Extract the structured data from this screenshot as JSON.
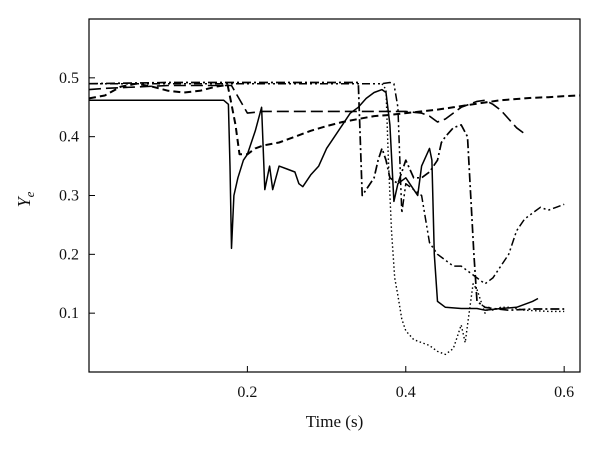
{
  "chart_data": {
    "type": "line",
    "xlabel": "Time (s)",
    "ylabel_main": "Y",
    "ylabel_sub": "e",
    "xlim": [
      0.0,
      0.62
    ],
    "ylim": [
      0.0,
      0.6
    ],
    "x_ticks": [
      0.2,
      0.4,
      0.6
    ],
    "y_ticks": [
      0.1,
      0.2,
      0.3,
      0.4,
      0.5
    ],
    "x_tick_labels": [
      "0.2",
      "0.4",
      "0.6"
    ],
    "y_tick_labels": [
      "0.1",
      "0.2",
      "0.3",
      "0.4",
      "0.5"
    ],
    "grid": false,
    "series": [
      {
        "style": "solid",
        "points": [
          [
            0.0,
            0.462
          ],
          [
            0.1,
            0.462
          ],
          [
            0.17,
            0.462
          ],
          [
            0.176,
            0.455
          ],
          [
            0.178,
            0.35
          ],
          [
            0.18,
            0.21
          ],
          [
            0.183,
            0.3
          ],
          [
            0.188,
            0.33
          ],
          [
            0.195,
            0.36
          ],
          [
            0.2,
            0.37
          ],
          [
            0.21,
            0.41
          ],
          [
            0.218,
            0.45
          ],
          [
            0.222,
            0.31
          ],
          [
            0.228,
            0.35
          ],
          [
            0.232,
            0.31
          ],
          [
            0.24,
            0.35
          ],
          [
            0.25,
            0.345
          ],
          [
            0.26,
            0.34
          ],
          [
            0.265,
            0.32
          ],
          [
            0.27,
            0.315
          ],
          [
            0.28,
            0.335
          ],
          [
            0.29,
            0.35
          ],
          [
            0.3,
            0.38
          ],
          [
            0.31,
            0.4
          ],
          [
            0.32,
            0.42
          ],
          [
            0.33,
            0.44
          ],
          [
            0.34,
            0.45
          ],
          [
            0.35,
            0.465
          ],
          [
            0.36,
            0.475
          ],
          [
            0.37,
            0.48
          ],
          [
            0.375,
            0.475
          ],
          [
            0.38,
            0.42
          ],
          [
            0.385,
            0.29
          ],
          [
            0.39,
            0.32
          ],
          [
            0.4,
            0.33
          ],
          [
            0.41,
            0.31
          ],
          [
            0.415,
            0.3
          ],
          [
            0.42,
            0.35
          ],
          [
            0.43,
            0.38
          ],
          [
            0.433,
            0.36
          ],
          [
            0.436,
            0.2
          ],
          [
            0.44,
            0.12
          ],
          [
            0.45,
            0.11
          ],
          [
            0.47,
            0.108
          ],
          [
            0.49,
            0.108
          ],
          [
            0.5,
            0.105
          ],
          [
            0.52,
            0.108
          ],
          [
            0.54,
            0.11
          ],
          [
            0.56,
            0.12
          ],
          [
            0.567,
            0.125
          ]
        ]
      },
      {
        "style": "dashed",
        "points": [
          [
            0.0,
            0.465
          ],
          [
            0.02,
            0.47
          ],
          [
            0.04,
            0.485
          ],
          [
            0.06,
            0.49
          ],
          [
            0.08,
            0.485
          ],
          [
            0.1,
            0.478
          ],
          [
            0.12,
            0.475
          ],
          [
            0.14,
            0.478
          ],
          [
            0.16,
            0.485
          ],
          [
            0.175,
            0.488
          ],
          [
            0.18,
            0.455
          ],
          [
            0.185,
            0.42
          ],
          [
            0.19,
            0.37
          ],
          [
            0.2,
            0.37
          ],
          [
            0.21,
            0.38
          ],
          [
            0.22,
            0.385
          ],
          [
            0.24,
            0.39
          ],
          [
            0.26,
            0.4
          ],
          [
            0.28,
            0.41
          ],
          [
            0.3,
            0.418
          ],
          [
            0.32,
            0.425
          ],
          [
            0.34,
            0.43
          ],
          [
            0.36,
            0.435
          ],
          [
            0.38,
            0.437
          ],
          [
            0.4,
            0.44
          ],
          [
            0.42,
            0.443
          ],
          [
            0.44,
            0.446
          ],
          [
            0.46,
            0.45
          ],
          [
            0.48,
            0.454
          ],
          [
            0.5,
            0.458
          ],
          [
            0.52,
            0.462
          ],
          [
            0.54,
            0.464
          ],
          [
            0.56,
            0.466
          ],
          [
            0.58,
            0.467
          ],
          [
            0.6,
            0.469
          ],
          [
            0.62,
            0.47
          ]
        ]
      },
      {
        "style": "longdash",
        "points": [
          [
            0.0,
            0.48
          ],
          [
            0.02,
            0.482
          ],
          [
            0.1,
            0.487
          ],
          [
            0.18,
            0.487
          ],
          [
            0.2,
            0.44
          ],
          [
            0.22,
            0.443
          ],
          [
            0.25,
            0.443
          ],
          [
            0.3,
            0.443
          ],
          [
            0.35,
            0.443
          ],
          [
            0.38,
            0.443
          ],
          [
            0.4,
            0.443
          ],
          [
            0.42,
            0.44
          ],
          [
            0.43,
            0.435
          ],
          [
            0.44,
            0.425
          ],
          [
            0.45,
            0.43
          ],
          [
            0.46,
            0.44
          ],
          [
            0.47,
            0.45
          ],
          [
            0.48,
            0.455
          ],
          [
            0.49,
            0.46
          ],
          [
            0.5,
            0.462
          ],
          [
            0.51,
            0.455
          ],
          [
            0.52,
            0.445
          ],
          [
            0.53,
            0.43
          ],
          [
            0.54,
            0.415
          ],
          [
            0.55,
            0.405
          ]
        ]
      },
      {
        "style": "dashdot",
        "points": [
          [
            0.0,
            0.49
          ],
          [
            0.1,
            0.492
          ],
          [
            0.2,
            0.492
          ],
          [
            0.3,
            0.492
          ],
          [
            0.34,
            0.492
          ],
          [
            0.345,
            0.3
          ],
          [
            0.35,
            0.31
          ],
          [
            0.36,
            0.33
          ],
          [
            0.365,
            0.36
          ],
          [
            0.37,
            0.38
          ],
          [
            0.375,
            0.36
          ],
          [
            0.38,
            0.33
          ],
          [
            0.39,
            0.32
          ],
          [
            0.4,
            0.36
          ],
          [
            0.41,
            0.33
          ],
          [
            0.42,
            0.33
          ],
          [
            0.43,
            0.34
          ],
          [
            0.44,
            0.36
          ],
          [
            0.445,
            0.39
          ],
          [
            0.45,
            0.4
          ],
          [
            0.46,
            0.415
          ],
          [
            0.47,
            0.42
          ],
          [
            0.478,
            0.4
          ],
          [
            0.482,
            0.3
          ],
          [
            0.486,
            0.2
          ],
          [
            0.49,
            0.12
          ],
          [
            0.5,
            0.11
          ],
          [
            0.51,
            0.108
          ],
          [
            0.53,
            0.105
          ],
          [
            0.56,
            0.107
          ],
          [
            0.6,
            0.107
          ]
        ]
      },
      {
        "style": "dashdotdot",
        "points": [
          [
            0.0,
            0.49
          ],
          [
            0.1,
            0.49
          ],
          [
            0.2,
            0.49
          ],
          [
            0.3,
            0.49
          ],
          [
            0.36,
            0.49
          ],
          [
            0.37,
            0.49
          ],
          [
            0.38,
            0.492
          ],
          [
            0.385,
            0.49
          ],
          [
            0.39,
            0.45
          ],
          [
            0.395,
            0.27
          ],
          [
            0.4,
            0.32
          ],
          [
            0.41,
            0.31
          ],
          [
            0.42,
            0.3
          ],
          [
            0.43,
            0.22
          ],
          [
            0.44,
            0.2
          ],
          [
            0.45,
            0.19
          ],
          [
            0.46,
            0.18
          ],
          [
            0.47,
            0.18
          ],
          [
            0.48,
            0.17
          ],
          [
            0.49,
            0.16
          ],
          [
            0.5,
            0.15
          ],
          [
            0.51,
            0.16
          ],
          [
            0.52,
            0.18
          ],
          [
            0.53,
            0.2
          ],
          [
            0.54,
            0.24
          ],
          [
            0.55,
            0.26
          ],
          [
            0.56,
            0.27
          ],
          [
            0.57,
            0.28
          ],
          [
            0.58,
            0.275
          ],
          [
            0.59,
            0.28
          ],
          [
            0.6,
            0.285
          ]
        ]
      },
      {
        "style": "dotted",
        "points": [
          [
            0.37,
            0.49
          ],
          [
            0.375,
            0.48
          ],
          [
            0.378,
            0.36
          ],
          [
            0.382,
            0.24
          ],
          [
            0.386,
            0.16
          ],
          [
            0.39,
            0.13
          ],
          [
            0.395,
            0.09
          ],
          [
            0.4,
            0.07
          ],
          [
            0.41,
            0.055
          ],
          [
            0.42,
            0.05
          ],
          [
            0.43,
            0.045
          ],
          [
            0.44,
            0.035
          ],
          [
            0.45,
            0.03
          ],
          [
            0.46,
            0.04
          ],
          [
            0.465,
            0.06
          ],
          [
            0.47,
            0.08
          ],
          [
            0.475,
            0.05
          ],
          [
            0.48,
            0.1
          ],
          [
            0.485,
            0.15
          ],
          [
            0.49,
            0.14
          ],
          [
            0.495,
            0.12
          ],
          [
            0.5,
            0.1
          ],
          [
            0.505,
            0.11
          ],
          [
            0.51,
            0.105
          ],
          [
            0.52,
            0.11
          ],
          [
            0.53,
            0.11
          ],
          [
            0.55,
            0.105
          ],
          [
            0.58,
            0.103
          ],
          [
            0.6,
            0.103
          ]
        ]
      }
    ]
  }
}
